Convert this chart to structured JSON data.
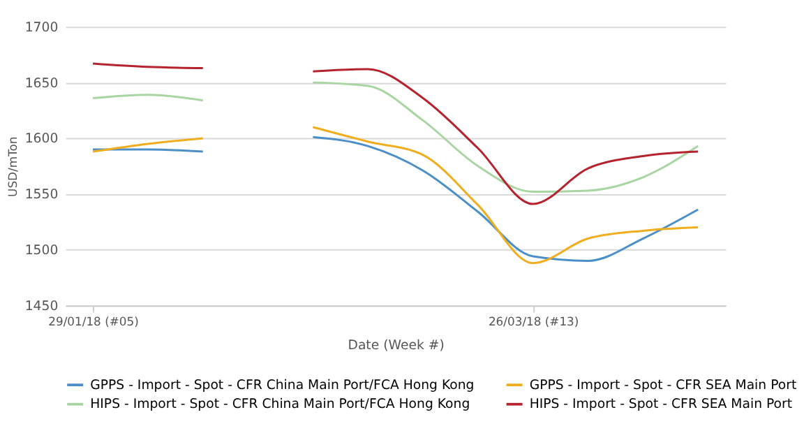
{
  "chart_data": {
    "type": "line",
    "xlabel": "Date (Week #)",
    "ylabel": "USD/mTon",
    "categories": [
      "29/01/18 (#05)",
      null,
      null,
      null,
      null,
      null,
      null,
      null,
      "26/03/18 (#13)",
      null,
      null,
      null
    ],
    "ylim": [
      1450,
      1700
    ],
    "yticks": [
      1450,
      1500,
      1550,
      1600,
      1650,
      1700
    ],
    "grid": "y",
    "legend": "bottom",
    "marker": "none",
    "line_style": "solid",
    "series": [
      {
        "name": "GPPS - Import - Spot - CFR China Main Port/FCA Hong Kong",
        "color": "#4a8fc8",
        "values": [
          1590,
          1590,
          1588,
          null,
          1601,
          1593,
          1571,
          1534,
          1494,
          1490,
          1510,
          1536
        ]
      },
      {
        "name": "GPPS - Import - Spot - CFR SEA Main Port",
        "color": "#f0ad1e",
        "values": [
          1588,
          1595,
          1600,
          null,
          1610,
          1597,
          1585,
          1540,
          1488,
          1510,
          1517,
          1520
        ]
      },
      {
        "name": "HIPS - Import - Spot - CFR China Main Port/FCA Hong Kong",
        "color": "#a8d5a2",
        "values": [
          1636,
          1639,
          1634,
          null,
          1650,
          1647,
          1616,
          1575,
          1552,
          1553,
          1565,
          1593
        ]
      },
      {
        "name": "HIPS - Import - Spot - CFR SEA Main Port",
        "color": "#b5242e",
        "values": [
          1667,
          1664,
          1663,
          null,
          1660,
          1662,
          1636,
          1591,
          1541,
          1573,
          1584,
          1588
        ]
      }
    ]
  }
}
